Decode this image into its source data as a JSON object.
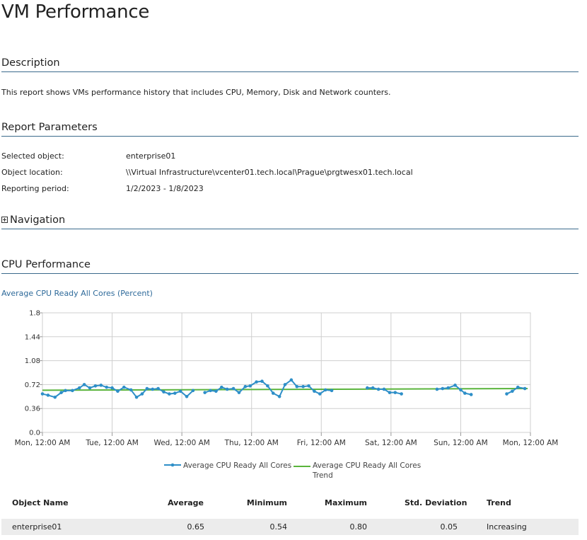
{
  "page_title": "VM Performance",
  "sections": {
    "description": "Description",
    "parameters": "Report Parameters",
    "navigation": "Navigation",
    "cpu": "CPU Performance"
  },
  "description_text": "This report shows VMs performance history that includes CPU, Memory, Disk and Network counters.",
  "parameters": [
    {
      "label": "Selected object:",
      "value": "enterprise01"
    },
    {
      "label": "Object location:",
      "value": "\\\\Virtual Infrastructure\\vcenter01.tech.local\\Prague\\prgtwesx01.tech.local"
    },
    {
      "label": "Reporting period:",
      "value": "1/2/2023 - 1/8/2023"
    }
  ],
  "chart_title": "Average CPU Ready All Cores (Percent)",
  "chart_data": {
    "type": "line",
    "title": "Average CPU Ready All Cores (Percent)",
    "ylim": [
      0,
      1.8
    ],
    "yticks": [
      "1.8",
      "1.44",
      "1.08",
      "0.72",
      "0.36",
      "0.0"
    ],
    "xticks": [
      "Mon, 12:00 AM",
      "Tue, 12:00 AM",
      "Wed, 12:00 AM",
      "Thu, 12:00 AM",
      "Fri, 12:00 AM",
      "Sat, 12:00 AM",
      "Sun, 12:00 AM",
      "Mon, 12:00 AM"
    ],
    "x_unit": "days since Mon 12:00 AM",
    "legend_position": "bottom",
    "colors": {
      "series": "#2e8fc8",
      "trend": "#5ab43c",
      "grid": "#cfcfcf"
    },
    "series": [
      {
        "name": "Average CPU Ready All Cores",
        "segments": [
          [
            [
              0.0,
              0.58
            ],
            [
              0.08,
              0.56
            ],
            [
              0.18,
              0.53
            ],
            [
              0.27,
              0.6
            ],
            [
              0.33,
              0.63
            ],
            [
              0.43,
              0.63
            ],
            [
              0.53,
              0.67
            ],
            [
              0.6,
              0.72
            ],
            [
              0.68,
              0.67
            ],
            [
              0.76,
              0.7
            ],
            [
              0.84,
              0.71
            ],
            [
              0.92,
              0.68
            ],
            [
              1.0,
              0.67
            ],
            [
              1.08,
              0.62
            ],
            [
              1.17,
              0.68
            ],
            [
              1.27,
              0.64
            ],
            [
              1.35,
              0.53
            ],
            [
              1.43,
              0.58
            ],
            [
              1.5,
              0.66
            ],
            [
              1.58,
              0.65
            ],
            [
              1.66,
              0.66
            ],
            [
              1.74,
              0.61
            ],
            [
              1.82,
              0.58
            ],
            [
              1.9,
              0.59
            ],
            [
              1.98,
              0.62
            ],
            [
              2.07,
              0.54
            ],
            [
              2.16,
              0.63
            ]
          ],
          [
            [
              2.33,
              0.6
            ],
            [
              2.41,
              0.63
            ],
            [
              2.49,
              0.62
            ],
            [
              2.57,
              0.68
            ],
            [
              2.65,
              0.65
            ],
            [
              2.74,
              0.66
            ],
            [
              2.82,
              0.6
            ],
            [
              2.91,
              0.69
            ],
            [
              2.98,
              0.7
            ],
            [
              3.07,
              0.76
            ],
            [
              3.15,
              0.77
            ],
            [
              3.23,
              0.7
            ],
            [
              3.31,
              0.59
            ],
            [
              3.4,
              0.54
            ],
            [
              3.48,
              0.72
            ],
            [
              3.57,
              0.79
            ],
            [
              3.65,
              0.69
            ],
            [
              3.74,
              0.69
            ],
            [
              3.82,
              0.7
            ],
            [
              3.9,
              0.62
            ],
            [
              3.98,
              0.58
            ],
            [
              4.06,
              0.64
            ],
            [
              4.15,
              0.63
            ]
          ],
          [
            [
              4.66,
              0.67
            ],
            [
              4.74,
              0.67
            ],
            [
              4.82,
              0.65
            ],
            [
              4.9,
              0.65
            ],
            [
              4.98,
              0.6
            ],
            [
              5.06,
              0.6
            ],
            [
              5.15,
              0.58
            ]
          ],
          [
            [
              5.66,
              0.65
            ],
            [
              5.74,
              0.66
            ],
            [
              5.82,
              0.67
            ],
            [
              5.92,
              0.71
            ],
            [
              6.0,
              0.64
            ],
            [
              6.06,
              0.59
            ],
            [
              6.15,
              0.57
            ]
          ],
          [
            [
              6.66,
              0.58
            ],
            [
              6.74,
              0.62
            ],
            [
              6.82,
              0.68
            ],
            [
              6.92,
              0.66
            ]
          ]
        ]
      },
      {
        "name": "Average CPU Ready All Cores Trend",
        "segments": [
          [
            [
              0.0,
              0.635
            ],
            [
              6.96,
              0.66
            ]
          ]
        ]
      }
    ]
  },
  "legend": [
    {
      "line1": "Average CPU Ready All Cores",
      "line2": ""
    },
    {
      "line1": "Average CPU Ready All Cores",
      "line2": "Trend"
    }
  ],
  "table": {
    "headers": [
      "Object Name",
      "Average",
      "Minimum",
      "Maximum",
      "Std. Deviation",
      "Trend"
    ],
    "rows": [
      [
        "enterprise01",
        "0.65",
        "0.54",
        "0.80",
        "0.05",
        "Increasing"
      ]
    ]
  }
}
